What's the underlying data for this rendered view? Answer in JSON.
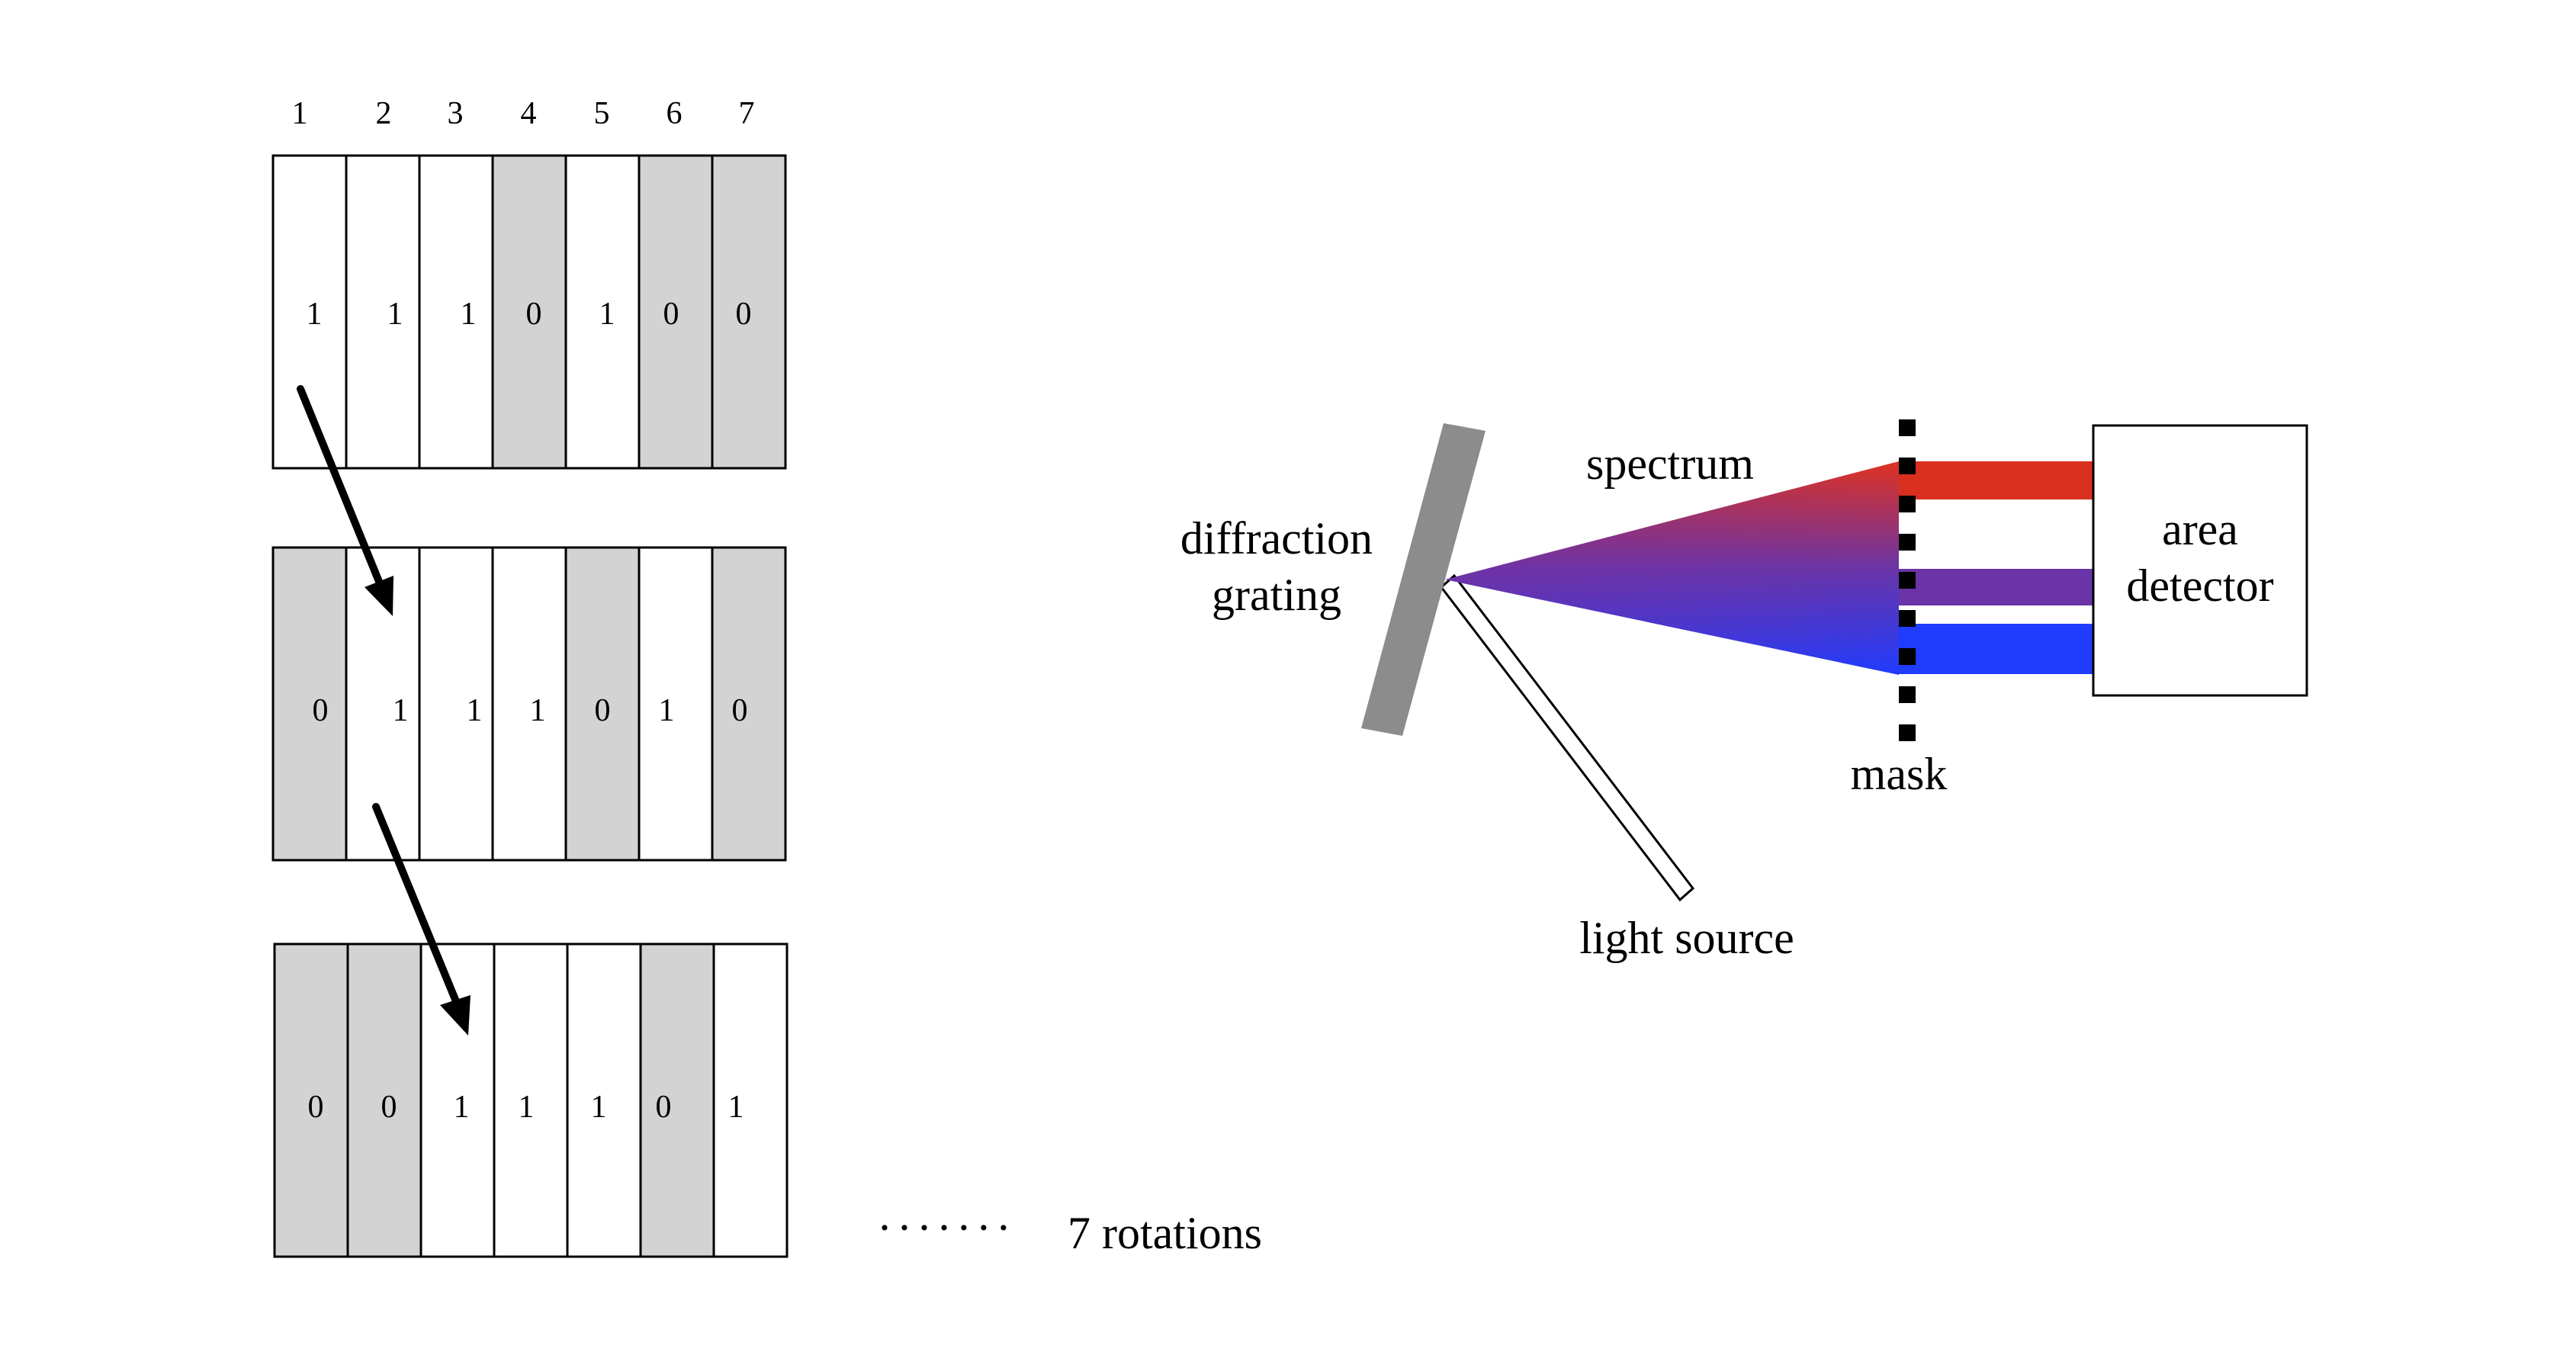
{
  "column_numbers": [
    "1",
    "2",
    "3",
    "4",
    "5",
    "6",
    "7"
  ],
  "mask_rows": [
    {
      "bits": [
        "1",
        "1",
        "1",
        "0",
        "1",
        "0",
        "0"
      ]
    },
    {
      "bits": [
        "0",
        "1",
        "1",
        "1",
        "0",
        "1",
        "0"
      ]
    },
    {
      "bits": [
        "0",
        "0",
        "1",
        "1",
        "1",
        "0",
        "1"
      ]
    }
  ],
  "rotations": {
    "dots": "·······",
    "label": "7 rotations"
  },
  "setup": {
    "grating_label_line1": "diffraction",
    "grating_label_line2": "grating",
    "spectrum_label": "spectrum",
    "light_source_label": "light source",
    "mask_label": "mask",
    "detector_label_line1": "area",
    "detector_label_line2": "detector"
  },
  "colors": {
    "mask_off": "#d3d3d3",
    "mask_on": "#ffffff",
    "grating": "#8c8c8c",
    "spectrum_red": "#e0321e",
    "spectrum_purple": "#6a34a6",
    "spectrum_blue": "#1f3cff"
  }
}
